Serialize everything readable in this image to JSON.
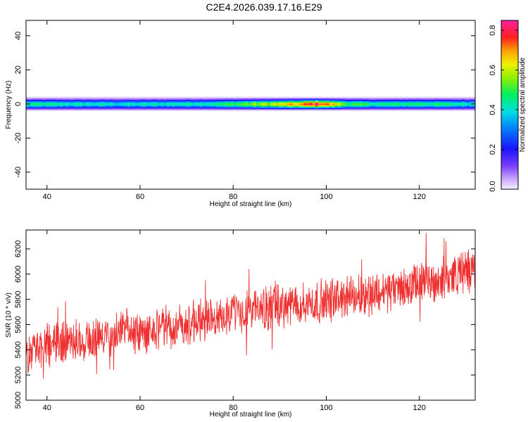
{
  "title": "C2E4.2026.039.17.16.E29",
  "chart_data": [
    {
      "type": "heatmap",
      "name": "spectrogram",
      "xlabel": "Height of straight line (km)",
      "ylabel": "Frequency (Hz)",
      "xlim": [
        35.5,
        132
      ],
      "ylim": [
        -50,
        49
      ],
      "xticks": [
        40,
        60,
        80,
        100,
        120
      ],
      "yticks": [
        40,
        20,
        0,
        -20,
        -40
      ],
      "band_halfwidth_hz": 3,
      "band_profile": [
        {
          "height": 36,
          "peak": 0.45
        },
        {
          "height": 46,
          "peak": 0.42
        },
        {
          "height": 56,
          "peak": 0.4
        },
        {
          "height": 66,
          "peak": 0.42
        },
        {
          "height": 76,
          "peak": 0.45
        },
        {
          "height": 84,
          "peak": 0.55
        },
        {
          "height": 90,
          "peak": 0.62
        },
        {
          "height": 95,
          "peak": 0.7
        },
        {
          "height": 98,
          "peak": 0.82
        },
        {
          "height": 101,
          "peak": 0.68
        },
        {
          "height": 105,
          "peak": 0.5
        },
        {
          "height": 112,
          "peak": 0.45
        },
        {
          "height": 120,
          "peak": 0.48
        },
        {
          "height": 132,
          "peak": 0.42
        }
      ],
      "colorbar": {
        "label": "Normalized spectral amplitude",
        "range": [
          0.0,
          0.85
        ],
        "ticks": [
          "0.0",
          "0.2",
          "0.4",
          "0.6",
          "0.8"
        ]
      }
    },
    {
      "type": "line",
      "name": "snr",
      "xlabel": "Height of straight line (km)",
      "ylabel": "SNR (10 * v/v)",
      "xlim": [
        35.5,
        132
      ],
      "ylim": [
        5000,
        6350
      ],
      "xticks": [
        40,
        60,
        80,
        100,
        120
      ],
      "yticks": [
        5000,
        5200,
        5400,
        5600,
        5800,
        6000,
        6200
      ],
      "color": "#ef3030",
      "trend": [
        {
          "x": 36,
          "y": 5380
        },
        {
          "x": 45,
          "y": 5470
        },
        {
          "x": 55,
          "y": 5520
        },
        {
          "x": 65,
          "y": 5560
        },
        {
          "x": 75,
          "y": 5650
        },
        {
          "x": 85,
          "y": 5720
        },
        {
          "x": 95,
          "y": 5760
        },
        {
          "x": 105,
          "y": 5820
        },
        {
          "x": 115,
          "y": 5880
        },
        {
          "x": 125,
          "y": 5960
        },
        {
          "x": 132,
          "y": 6050
        }
      ],
      "noise_amplitude": 140
    }
  ]
}
